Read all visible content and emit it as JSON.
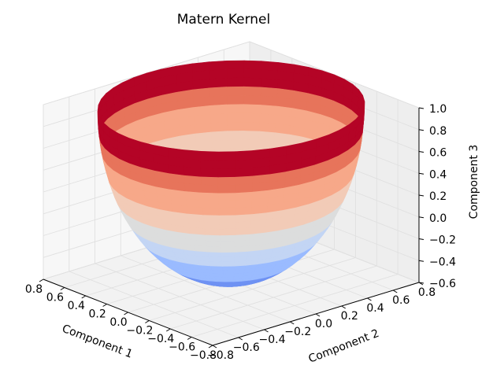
{
  "chart_data": {
    "type": "surface3d",
    "title": "Matern Kernel",
    "xlabel": "Component 1",
    "ylabel": "Component 2",
    "zlabel": "Component 3",
    "x_ticks": [
      "−0.8",
      "−0.6",
      "−0.4",
      "−0.2",
      "0.0",
      "0.2",
      "0.4",
      "0.6",
      "0.8"
    ],
    "y_ticks": [
      "−0.8",
      "−0.6",
      "−0.4",
      "−0.2",
      "0.0",
      "0.2",
      "0.4",
      "0.6",
      "0.8"
    ],
    "z_ticks": [
      "−0.6",
      "−0.4",
      "−0.2",
      "0.0",
      "0.2",
      "0.4",
      "0.6",
      "0.8",
      "1.0"
    ],
    "xlim": [
      -0.8,
      0.8
    ],
    "ylim": [
      -0.8,
      0.8
    ],
    "zlim": [
      -0.6,
      1.0
    ],
    "surface": {
      "shape": "hemispherical bowl",
      "radius": 0.8,
      "z_min": -0.6,
      "z_max": 1.0,
      "colormap": "coolwarm",
      "bands": [
        {
          "z_low": -0.6,
          "z_high": -0.4,
          "color": "#6f92f3"
        },
        {
          "z_low": -0.4,
          "z_high": -0.2,
          "color": "#9abbff"
        },
        {
          "z_low": -0.2,
          "z_high": 0.0,
          "color": "#c3d5f4"
        },
        {
          "z_low": 0.0,
          "z_high": 0.2,
          "color": "#dcdddd"
        },
        {
          "z_low": 0.2,
          "z_high": 0.4,
          "color": "#f2cbb7"
        },
        {
          "z_low": 0.4,
          "z_high": 0.6,
          "color": "#f7a889"
        },
        {
          "z_low": 0.6,
          "z_high": 0.8,
          "color": "#e7745b"
        },
        {
          "z_low": 0.8,
          "z_high": 1.0,
          "color": "#b40426"
        }
      ]
    },
    "grid": true
  }
}
